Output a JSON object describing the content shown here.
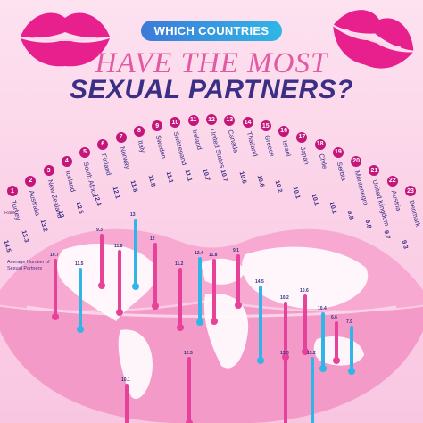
{
  "header": {
    "badge": "WHICH COUNTRIES",
    "title_line1": "HAVE THE MOST",
    "title_line2": "SEXUAL PARTNERS?"
  },
  "labels": {
    "rank": "Rank",
    "average": "Average Number of Sexual Partners"
  },
  "colors": {
    "lips": "#e8208d",
    "title_pink": "#e25aa2",
    "title_navy": "#3a2f85",
    "rank_dot": "#c4167a",
    "bar_pink": "#e7429a",
    "bar_blue": "#2fb6e6"
  },
  "countries": [
    {
      "rank": "1",
      "name": "Turkey",
      "value": "14.5"
    },
    {
      "rank": "2",
      "name": "Australia",
      "value": "13.3"
    },
    {
      "rank": "3",
      "name": "New Zealand",
      "value": "13.2"
    },
    {
      "rank": "4",
      "name": "Iceland",
      "value": "13"
    },
    {
      "rank": "5",
      "name": "South Africa",
      "value": "12.5"
    },
    {
      "rank": "6",
      "name": "Finland",
      "value": "12.4"
    },
    {
      "rank": "7",
      "name": "Norway",
      "value": "12.1"
    },
    {
      "rank": "8",
      "name": "Italy",
      "value": "11.8"
    },
    {
      "rank": "9",
      "name": "Sweden",
      "value": "11.8"
    },
    {
      "rank": "10",
      "name": "Switzerland",
      "value": "11.1"
    },
    {
      "rank": "11",
      "name": "Ireland",
      "value": "11.1"
    },
    {
      "rank": "12",
      "name": "United States",
      "value": "10.7"
    },
    {
      "rank": "13",
      "name": "Canada",
      "value": "10.7"
    },
    {
      "rank": "14",
      "name": "Thailand",
      "value": "10.6"
    },
    {
      "rank": "15",
      "name": "Greece",
      "value": "10.6"
    },
    {
      "rank": "16",
      "name": "Israel",
      "value": "10.2"
    },
    {
      "rank": "17",
      "name": "Japan",
      "value": "10.1"
    },
    {
      "rank": "18",
      "name": "Chile",
      "value": "10.1"
    },
    {
      "rank": "19",
      "name": "Serbia",
      "value": "10.1"
    },
    {
      "rank": "20",
      "name": "Montenegro",
      "value": "9.8"
    },
    {
      "rank": "21",
      "name": "United Kingdom",
      "value": "9.8"
    },
    {
      "rank": "22",
      "name": "Austria",
      "value": "9.7"
    },
    {
      "rank": "23",
      "name": "Denmark",
      "value": "9.3"
    }
  ],
  "map_values": [
    "10.7",
    "11.5",
    "9.3",
    "11.8",
    "13",
    "12",
    "11.2",
    "12.4",
    "11.8",
    "9.1",
    "14.5",
    "10.2",
    "10.6",
    "10.4",
    "12.5",
    "13.3",
    "13.2",
    "10.1",
    "6.6",
    "7.9"
  ]
}
